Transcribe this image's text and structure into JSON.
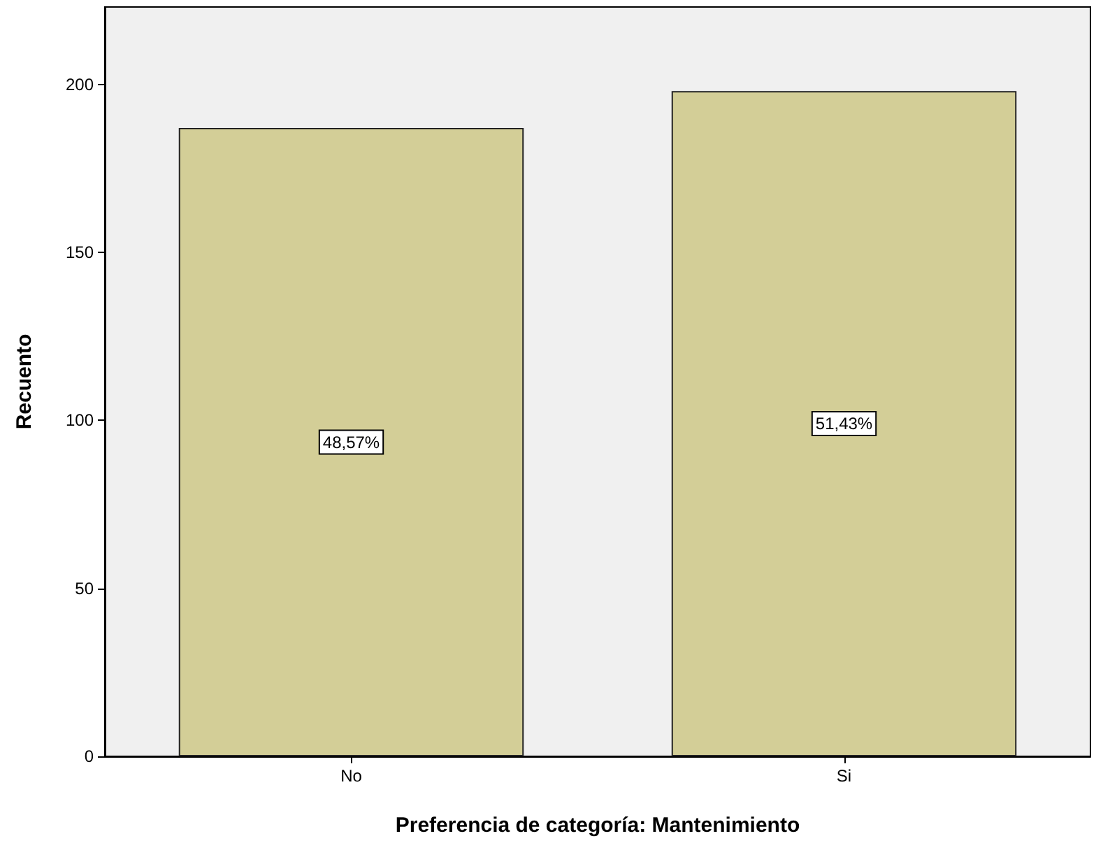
{
  "chart_data": {
    "type": "bar",
    "xlabel": "Preferencia de categoría: Mantenimiento",
    "ylabel": "Recuento",
    "categories": [
      "No",
      "Si"
    ],
    "values": [
      187,
      198
    ],
    "color": "#d3ce97",
    "annotations": [
      "48,57%",
      "51,43%"
    ],
    "ylim": [
      0,
      223
    ],
    "yticks": [
      0,
      50,
      100,
      150,
      200
    ],
    "grid": false
  }
}
